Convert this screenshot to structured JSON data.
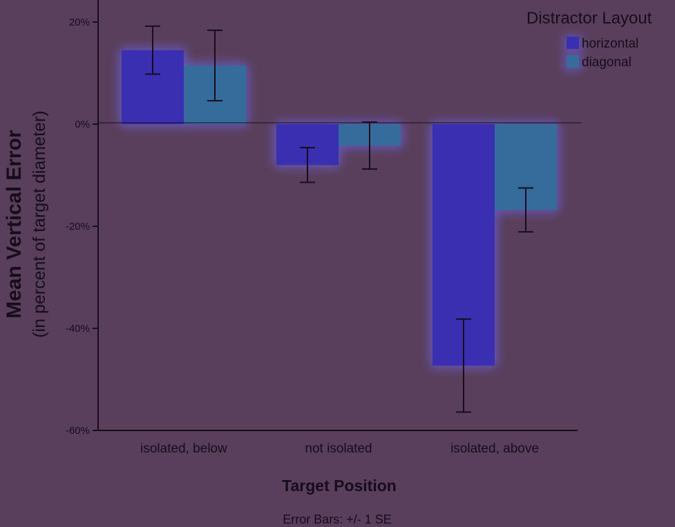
{
  "chart_data": {
    "type": "bar",
    "ylabel": "Mean Vertical Error",
    "ylabel_sub": "(in percent of target diameter)",
    "xlabel": "Target Position",
    "note": "Error Bars: +/- 1 SE",
    "legend_title": "Distractor Layout",
    "legend_position": "top-right",
    "categories": [
      "isolated, below",
      "not isolated",
      "isolated, above"
    ],
    "ylim": [
      -60,
      20
    ],
    "yticks": [
      20,
      0,
      -20,
      -40,
      -60
    ],
    "ytick_labels": [
      "20%",
      "0%",
      "-20%",
      "-40%",
      "-60%"
    ],
    "grid": false,
    "series": [
      {
        "name": "horizontal",
        "color": "#3a2fb0",
        "values": [
          14.5,
          -8,
          -47.3
        ],
        "errors": [
          4.7,
          3.4,
          9.1
        ]
      },
      {
        "name": "diagonal",
        "color": "#356c9c",
        "values": [
          11.5,
          -4.2,
          -16.8
        ],
        "errors": [
          6.9,
          4.6,
          4.3
        ]
      }
    ]
  }
}
